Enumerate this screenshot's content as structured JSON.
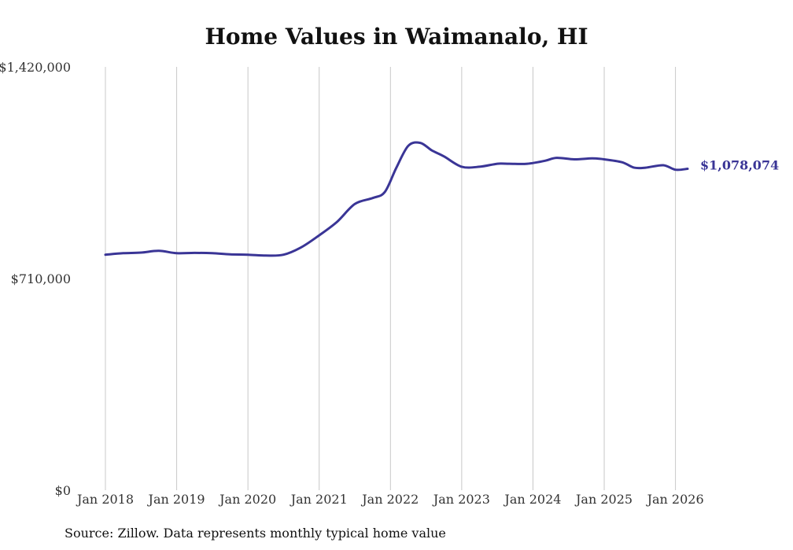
{
  "chart_data": {
    "type": "line",
    "title": "Home Values in Waimanalo, HI",
    "source": "Source: Zillow. Data represents monthly typical home value",
    "xlabel": "",
    "ylabel": "",
    "ylim": [
      0,
      1420000
    ],
    "y_ticks": [
      "$0",
      "$710,000",
      "$1,420,000"
    ],
    "y_tick_values": [
      0,
      710000,
      1420000
    ],
    "x_ticks": [
      "Jan 2018",
      "Jan 2019",
      "Jan 2020",
      "Jan 2021",
      "Jan 2022",
      "Jan 2023",
      "Jan 2024",
      "Jan 2025",
      "Jan 2026"
    ],
    "x_tick_values": [
      2018,
      2019,
      2020,
      2021,
      2022,
      2023,
      2024,
      2025,
      2026
    ],
    "xlim": [
      2018,
      2026.17
    ],
    "grid": "vertical",
    "series": [
      {
        "name": "Typical home value",
        "color": "#3a3596",
        "end_label": "$1,078,074",
        "x": [
          2018.0,
          2018.25,
          2018.5,
          2018.75,
          2019.0,
          2019.25,
          2019.5,
          2019.75,
          2020.0,
          2020.25,
          2020.5,
          2020.75,
          2021.0,
          2021.25,
          2021.5,
          2021.75,
          2021.92,
          2022.08,
          2022.25,
          2022.42,
          2022.58,
          2022.75,
          2023.0,
          2023.25,
          2023.5,
          2023.67,
          2023.92,
          2024.17,
          2024.33,
          2024.58,
          2024.83,
          2025.0,
          2025.25,
          2025.42,
          2025.58,
          2025.83,
          2026.0,
          2026.17
        ],
        "y": [
          790000,
          795000,
          797000,
          803000,
          795000,
          796000,
          795000,
          791000,
          790000,
          787000,
          790000,
          815000,
          855000,
          900000,
          960000,
          980000,
          1000000,
          1080000,
          1155000,
          1165000,
          1140000,
          1120000,
          1085000,
          1085000,
          1095000,
          1095000,
          1095000,
          1105000,
          1115000,
          1110000,
          1113000,
          1110000,
          1100000,
          1082000,
          1082000,
          1090000,
          1075000,
          1078074
        ]
      }
    ]
  }
}
